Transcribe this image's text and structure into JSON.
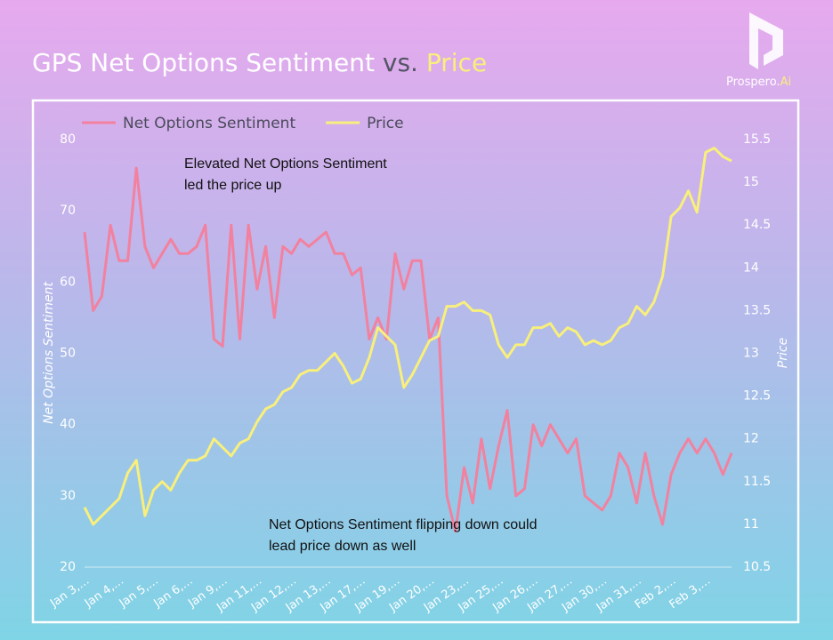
{
  "brand": {
    "name": "Prospero.",
    "suffix": "Ai"
  },
  "chart_data": {
    "type": "line",
    "title_parts": [
      "GPS Net Options Sentiment",
      "vs.",
      "Price"
    ],
    "ylabel": "Net Options Sentiment",
    "y2label": "Price",
    "annotations": [
      [
        "Elevated Net Options Sentiment",
        "led the price up"
      ],
      [
        "Net Options Sentiment flipping down could",
        "lead price down as well"
      ]
    ],
    "categories": [
      "Jan 3,…",
      null,
      null,
      null,
      "Jan 4,…",
      null,
      null,
      null,
      "Jan 5,…",
      null,
      null,
      null,
      "Jan 6,…",
      null,
      null,
      null,
      "Jan 9,…",
      null,
      null,
      null,
      "Jan 11,…",
      null,
      null,
      null,
      "Jan 12,…",
      null,
      null,
      null,
      "Jan 13,…",
      null,
      null,
      null,
      "Jan 17,…",
      null,
      null,
      null,
      "Jan 19,…",
      null,
      null,
      null,
      "Jan 20,…",
      null,
      null,
      null,
      "Jan 23,…",
      null,
      null,
      null,
      "Jan 25,…",
      null,
      null,
      null,
      "Jan 26,…",
      null,
      null,
      null,
      "Jan 27,…",
      null,
      null,
      null,
      "Jan 30,…",
      null,
      null,
      null,
      "Jan 31,…",
      null,
      null,
      null,
      "Feb 2,…",
      null,
      null,
      null,
      "Feb 3,…",
      null,
      null,
      null
    ],
    "series": [
      {
        "name": "Net Options Sentiment",
        "color": "#f2819f",
        "axis": "y",
        "values": [
          67,
          56,
          58,
          68,
          63,
          63,
          76,
          65,
          62,
          64,
          66,
          64,
          64,
          65,
          68,
          52,
          51,
          68,
          52,
          68,
          59,
          65,
          55,
          65,
          64,
          66,
          65,
          66,
          67,
          64,
          64,
          61,
          62,
          52,
          55,
          52,
          64,
          59,
          63,
          63,
          52,
          55,
          30,
          25,
          34,
          29,
          38,
          31,
          37,
          42,
          30,
          31,
          40,
          37,
          40,
          38,
          36,
          38,
          30,
          29,
          28,
          30,
          36,
          34,
          29,
          36,
          30,
          26,
          33,
          36,
          38,
          36,
          38,
          36,
          33,
          36
        ]
      },
      {
        "name": "Price",
        "color": "#f8ef7c",
        "axis": "y2",
        "values": [
          11.2,
          11.0,
          11.1,
          11.2,
          11.3,
          11.6,
          11.75,
          11.1,
          11.4,
          11.5,
          11.4,
          11.6,
          11.75,
          11.75,
          11.8,
          12.0,
          11.9,
          11.8,
          11.95,
          12.0,
          12.2,
          12.35,
          12.4,
          12.55,
          12.6,
          12.75,
          12.8,
          12.8,
          12.9,
          13.0,
          12.85,
          12.65,
          12.7,
          12.95,
          13.3,
          13.2,
          13.1,
          12.6,
          12.75,
          12.95,
          13.15,
          13.2,
          13.55,
          13.55,
          13.6,
          13.5,
          13.5,
          13.45,
          13.1,
          12.95,
          13.1,
          13.1,
          13.3,
          13.3,
          13.35,
          13.2,
          13.3,
          13.25,
          13.1,
          13.15,
          13.1,
          13.15,
          13.3,
          13.35,
          13.55,
          13.45,
          13.6,
          13.9,
          14.6,
          14.7,
          14.9,
          14.65,
          15.35,
          15.4,
          15.3,
          15.25
        ]
      }
    ],
    "ylim": [
      20,
      80
    ],
    "yticks": [
      20,
      30,
      40,
      50,
      60,
      70,
      80
    ],
    "y2lim": [
      10.5,
      15.5
    ],
    "y2ticks": [
      10.5,
      11,
      11.5,
      12,
      12.5,
      13,
      13.5,
      14,
      14.5,
      15,
      15.5
    ],
    "grid": false,
    "legend": "top-left"
  }
}
